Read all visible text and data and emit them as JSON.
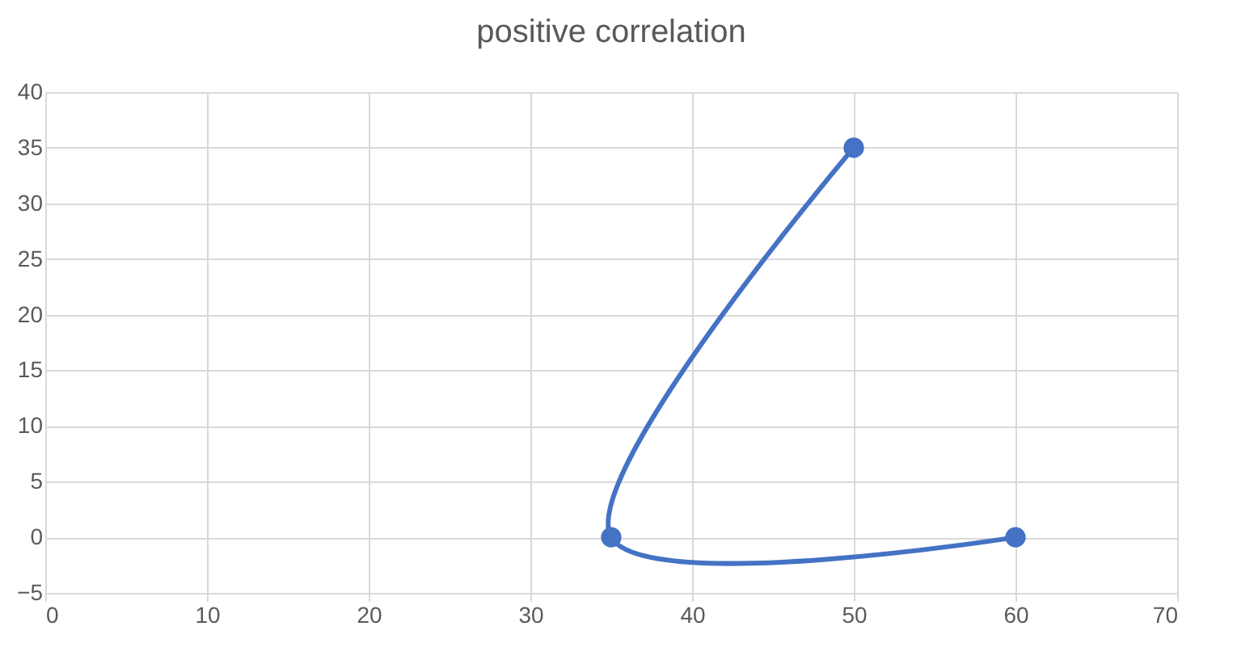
{
  "chart_data": {
    "type": "line",
    "title": "positive correlation",
    "x": [
      50,
      35,
      60
    ],
    "series": [
      {
        "color": "#4472c4",
        "values": [
          35,
          0,
          0
        ]
      }
    ],
    "xlim": [
      0,
      70
    ],
    "xticks": [
      0,
      10,
      20,
      30,
      40,
      50,
      60,
      70
    ],
    "ylim": [
      -5,
      40
    ],
    "yticks": [
      -5,
      0,
      5,
      10,
      15,
      20,
      25,
      30,
      35,
      40
    ],
    "grid": true,
    "marker": "circle",
    "line_style": "solid"
  }
}
